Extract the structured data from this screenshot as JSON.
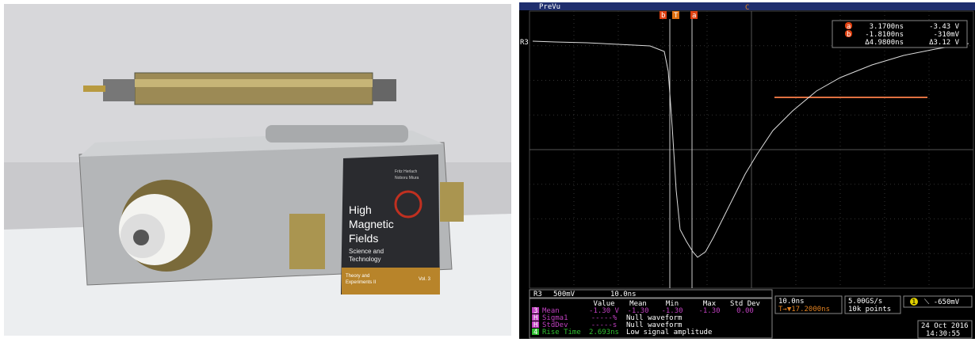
{
  "photo": {
    "book": {
      "editors": [
        "Fritz Herlach",
        "Noboru Miura"
      ],
      "title": [
        "High",
        "Magnetic",
        "Fields"
      ],
      "subtitle": [
        "Science and",
        "Technology"
      ],
      "series": [
        "Theory and",
        "Experiments II"
      ],
      "volume": "Vol. 3"
    }
  },
  "scope": {
    "header": "PreVu",
    "cursors": [
      "b",
      "T",
      "a"
    ],
    "trigger_marker": "C",
    "readout": [
      {
        "id": "a",
        "time": "3.1700ns",
        "volt": "-3.43 V"
      },
      {
        "id": "b",
        "time": "-1.8100ns",
        "volt": "-310mV"
      },
      {
        "id": "",
        "time": "Δ4.9800ns",
        "volt": "Δ3.12 V"
      }
    ],
    "ref_label": "R3",
    "channel": {
      "id": "R3",
      "scale": "500mV",
      "time": "10.0ns"
    },
    "measurements": {
      "header": [
        "Value",
        "Mean",
        "Min",
        "Max",
        "Std Dev"
      ],
      "rows": [
        {
          "icon": "3",
          "name": "Mean",
          "cells": [
            "-1.30 V",
            "-1.30",
            "-1.30",
            "-1.30",
            "0.00"
          ]
        },
        {
          "icon": "H",
          "name": "Sigma1",
          "cells": [
            "-----%",
            "Null waveform"
          ]
        },
        {
          "icon": "H",
          "name": "StdDev",
          "cells": [
            "-----s",
            "Null waveform"
          ]
        },
        {
          "icon": "4",
          "name": "Rise Time",
          "cells": [
            "2.693ns",
            "Low signal amplitude"
          ]
        }
      ]
    },
    "horizontal": {
      "scale": "10.0ns",
      "delay": "T→▼17.2000ns"
    },
    "acquisition": {
      "rate": "5.00GS/s",
      "points": "10k points"
    },
    "trigger": {
      "channel": "1",
      "level": "⟍ -650mV"
    },
    "date": "24 Oct 2016",
    "time": "14:30:55"
  }
}
